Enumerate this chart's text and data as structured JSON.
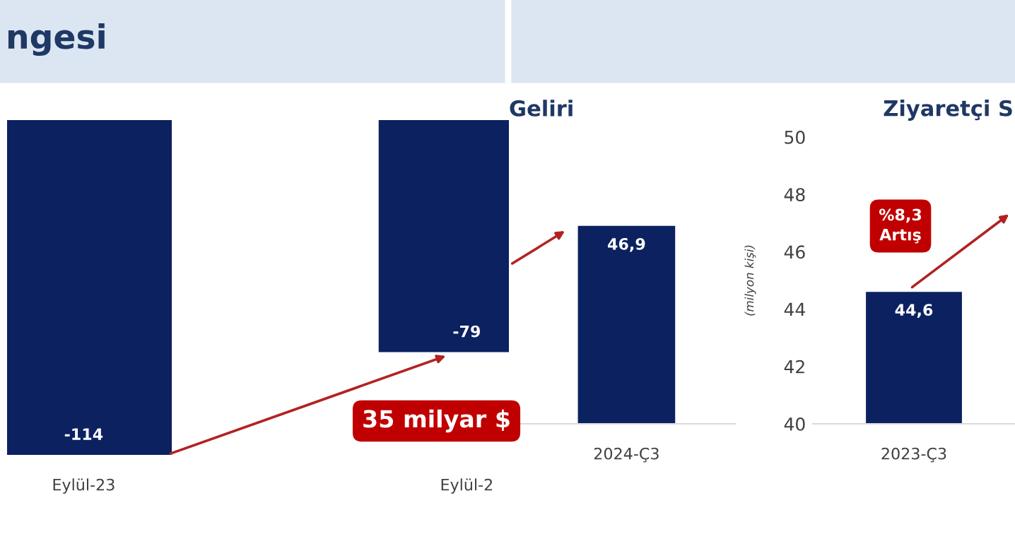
{
  "chart_data": [
    {
      "type": "bar",
      "title": "ngesi",
      "categories": [
        "Eylül-23",
        "Eylül-2"
      ],
      "values": [
        -114,
        -79
      ],
      "value_labels": [
        "-114",
        "-79"
      ],
      "color": "#0b2160",
      "tick_labels": "x",
      "annotations": [
        "35 milyar $"
      ]
    },
    {
      "type": "bar",
      "title": "Geliri",
      "categories": [
        "2024-Ç3"
      ],
      "values": [
        46.9
      ],
      "value_labels": [
        "46,9"
      ],
      "color": "#0b2160",
      "ylim": [
        40,
        50
      ],
      "tick_labels": "x"
    },
    {
      "type": "bar",
      "title": "Ziyaretçi S",
      "ylabel": "(milyon kişi)",
      "categories": [
        "2023-Ç3"
      ],
      "values": [
        44.6
      ],
      "value_labels": [
        "44,6"
      ],
      "color": "#0b2160",
      "ylim": [
        40,
        50
      ],
      "yticks": [
        40,
        42,
        44,
        46,
        48,
        50
      ],
      "annotations": [
        "%8,3\nArtış"
      ]
    }
  ]
}
